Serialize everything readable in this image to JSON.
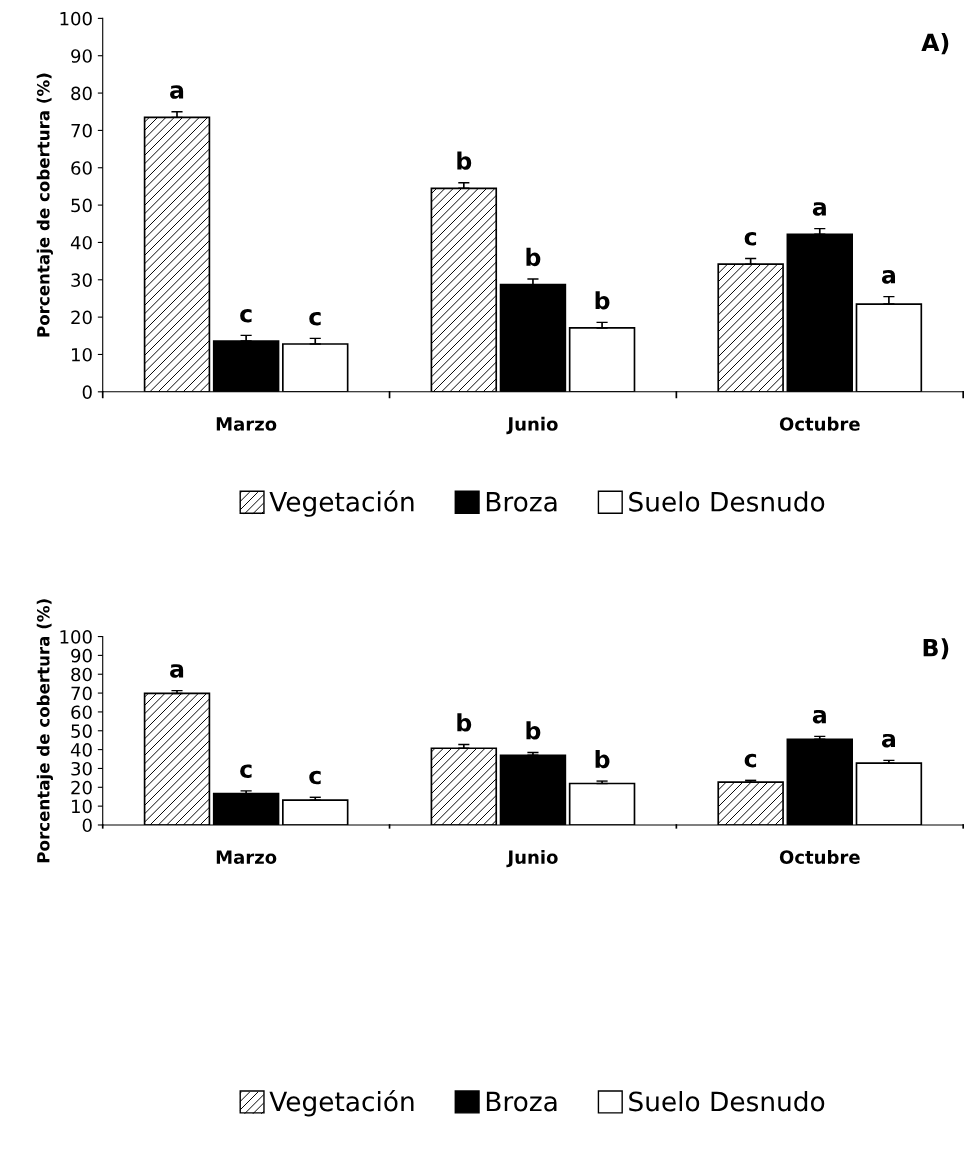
{
  "chart_data": [
    {
      "type": "bar",
      "ylabel": "Porcentaje de cobertura (%)",
      "categories": [
        "Marzo",
        "Junio",
        "Octubre"
      ],
      "series": [
        {
          "name": "Vegetación",
          "color": "#ffffff",
          "values": [
            73.5,
            54.5,
            34.2
          ],
          "errors": [
            1.5,
            1.5,
            1.5
          ]
        },
        {
          "name": "Broza",
          "color": "#000000",
          "values": [
            13.6,
            28.7,
            42.2
          ],
          "errors": [
            1.5,
            1.5,
            1.5
          ]
        },
        {
          "name": "Suelo Desnudo",
          "color": "#ffffff",
          "values": [
            12.8,
            17.1,
            23.5
          ],
          "errors": [
            1.5,
            1.5,
            2
          ]
        }
      ],
      "ylim": [
        0,
        100
      ],
      "yticks": [
        0,
        10,
        20,
        30,
        40,
        50,
        60,
        70,
        80,
        90,
        100
      ],
      "grid": false,
      "legend": "bottom",
      "annotations": [
        "A)",
        "a",
        "c",
        "c",
        "b",
        "b",
        "b",
        "c",
        "a",
        "a"
      ]
    },
    {
      "type": "bar",
      "ylabel": "Porcentaje de cobertura (%)",
      "categories": [
        "Marzo",
        "Junio",
        "Octubre"
      ],
      "series": [
        {
          "name": "Vegetación",
          "color": "#ffffff",
          "values": [
            69.8,
            40.7,
            22.7
          ],
          "errors": [
            1.5,
            2,
            1
          ]
        },
        {
          "name": "Broza",
          "color": "#000000",
          "values": [
            16.6,
            37,
            45.5
          ],
          "errors": [
            1.5,
            1.5,
            1.5
          ]
        },
        {
          "name": "Suelo Desnudo",
          "color": "#ffffff",
          "values": [
            13.2,
            22,
            32.8
          ],
          "errors": [
            1.5,
            1.3,
            1.5
          ]
        }
      ],
      "ylim": [
        0,
        100
      ],
      "yticks": [
        0,
        10,
        20,
        30,
        40,
        50,
        60,
        70,
        80,
        90,
        100
      ],
      "grid": false,
      "legend": "bottom",
      "annotations": [
        "B)",
        "a",
        "c",
        "c",
        "b",
        "b",
        "b",
        "c",
        "a",
        "a"
      ]
    }
  ]
}
